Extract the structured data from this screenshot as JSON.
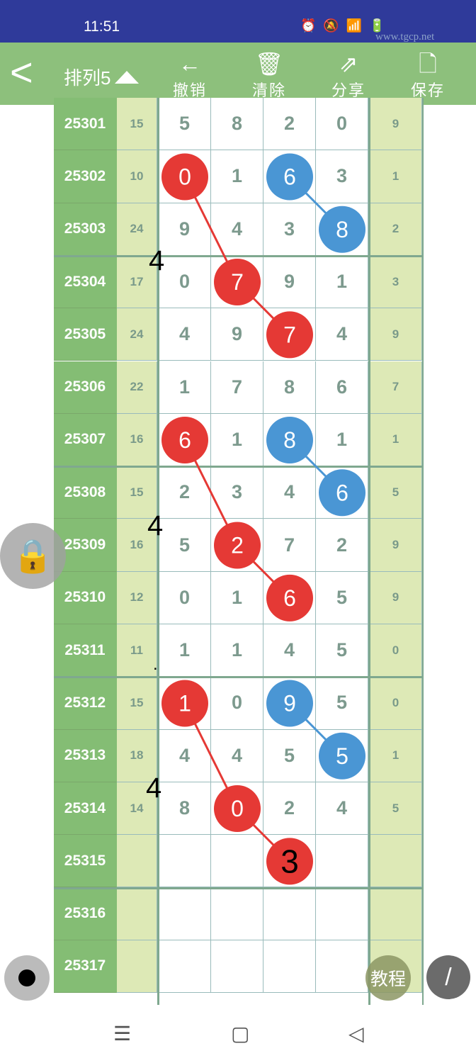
{
  "status": {
    "time": "11:51",
    "watermark": "www.tgcp.net"
  },
  "header": {
    "title": "排列5",
    "actions": [
      {
        "label": "撤销",
        "icon": "undo-arrow-icon"
      },
      {
        "label": "清除",
        "icon": "trash-icon"
      },
      {
        "label": "分享",
        "icon": "share-icon"
      },
      {
        "label": "保存",
        "icon": "save-file-icon"
      }
    ]
  },
  "rows": [
    {
      "id": "25301",
      "sum": "15",
      "digits": [
        "5",
        "8",
        "2",
        "0"
      ],
      "last": "9"
    },
    {
      "id": "25302",
      "sum": "10",
      "digits": [
        "0",
        "1",
        "6",
        "3"
      ],
      "last": "1"
    },
    {
      "id": "25303",
      "sum": "24",
      "digits": [
        "9",
        "4",
        "3",
        "8"
      ],
      "last": "2"
    },
    {
      "id": "25304",
      "sum": "17",
      "digits": [
        "0",
        "7",
        "9",
        "1"
      ],
      "last": "3"
    },
    {
      "id": "25305",
      "sum": "24",
      "digits": [
        "4",
        "9",
        "7",
        "4"
      ],
      "last": "9"
    },
    {
      "id": "25306",
      "sum": "22",
      "digits": [
        "1",
        "7",
        "8",
        "6"
      ],
      "last": "7"
    },
    {
      "id": "25307",
      "sum": "16",
      "digits": [
        "6",
        "1",
        "8",
        "1"
      ],
      "last": "1"
    },
    {
      "id": "25308",
      "sum": "15",
      "digits": [
        "2",
        "3",
        "4",
        "6"
      ],
      "last": "5"
    },
    {
      "id": "25309",
      "sum": "16",
      "digits": [
        "5",
        "2",
        "7",
        "2"
      ],
      "last": "9"
    },
    {
      "id": "25310",
      "sum": "12",
      "digits": [
        "0",
        "1",
        "6",
        "5"
      ],
      "last": "9"
    },
    {
      "id": "25311",
      "sum": "11",
      "digits": [
        "1",
        "1",
        "4",
        "5"
      ],
      "last": "0"
    },
    {
      "id": "25312",
      "sum": "15",
      "digits": [
        "1",
        "0",
        "9",
        "5"
      ],
      "last": "0"
    },
    {
      "id": "25313",
      "sum": "18",
      "digits": [
        "4",
        "4",
        "5",
        "5"
      ],
      "last": "1"
    },
    {
      "id": "25314",
      "sum": "14",
      "digits": [
        "8",
        "0",
        "2",
        "4"
      ],
      "last": "5"
    },
    {
      "id": "25315",
      "sum": "",
      "digits": [
        "",
        "",
        "3",
        ""
      ],
      "last": ""
    },
    {
      "id": "25316",
      "sum": "",
      "digits": [
        "",
        "",
        "",
        ""
      ],
      "last": ""
    },
    {
      "id": "25317",
      "sum": "",
      "digits": [
        "",
        "",
        "",
        ""
      ],
      "last": ""
    }
  ],
  "marks": {
    "red_color": "#e53935",
    "blue_color": "#4a96d4",
    "red_chains": [
      [
        [
          1,
          0
        ],
        [
          3,
          1
        ],
        [
          4,
          2
        ]
      ],
      [
        [
          6,
          0
        ],
        [
          8,
          1
        ],
        [
          9,
          2
        ]
      ],
      [
        [
          11,
          0
        ],
        [
          13,
          1
        ],
        [
          14,
          2
        ]
      ]
    ],
    "blue_chains": [
      [
        [
          1,
          2
        ],
        [
          2,
          3
        ]
      ],
      [
        [
          6,
          2
        ],
        [
          7,
          3
        ]
      ],
      [
        [
          11,
          2
        ],
        [
          12,
          3
        ]
      ]
    ]
  },
  "annotations": [
    "4",
    "4",
    "4",
    "."
  ],
  "fab": {
    "tutorial": "教程"
  }
}
